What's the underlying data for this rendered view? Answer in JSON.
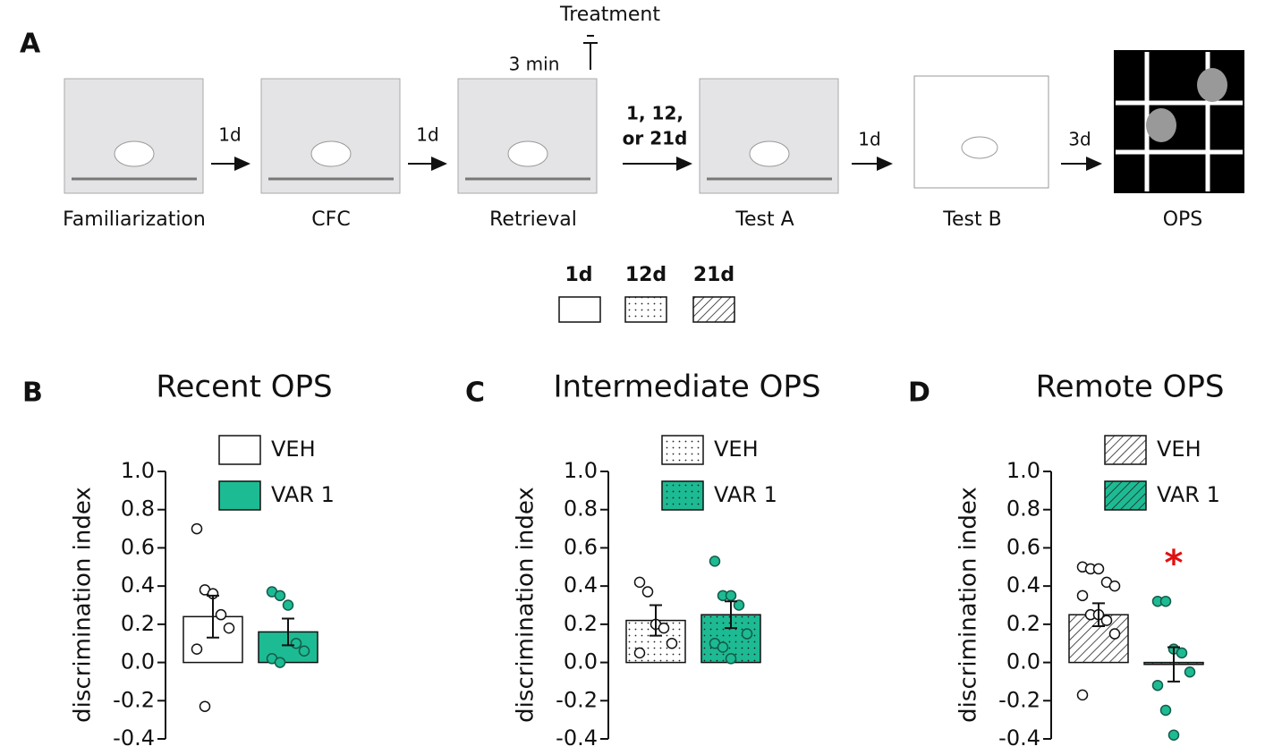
{
  "panel_a": {
    "letter": "A",
    "treatment": "Treatment",
    "duration": "3 min",
    "stages": [
      "Familiarization",
      "CFC",
      "Retrieval",
      "Test A",
      "Test B",
      "OPS"
    ],
    "intervals": [
      "1d",
      "1d",
      "1, 12,",
      "or 21d",
      "1d",
      "3d"
    ],
    "legend": [
      "1d",
      "12d",
      "21d"
    ]
  },
  "chart_data": [
    {
      "type": "bar",
      "panel": "B",
      "title": "Recent OPS",
      "y_label": "discrimination index",
      "pattern": "none",
      "ylim": [
        -0.4,
        1.0
      ],
      "yticks": [
        -0.4,
        -0.2,
        {
          "value": 0,
          "label": "0.0"
        },
        0.2,
        0.4,
        0.6,
        0.8,
        {
          "value": 1,
          "label": "1.0"
        }
      ],
      "series": [
        {
          "name": "VEH",
          "color": "#ffffff",
          "values": [
            0.24
          ],
          "errors": [
            0.11
          ],
          "points": [
            0.7,
            0.38,
            0.36,
            0.25,
            0.18,
            0.07,
            -0.23
          ]
        },
        {
          "name": "VAR 1",
          "color": "#1dbb93",
          "values": [
            0.16
          ],
          "errors": [
            0.07
          ],
          "points": [
            0.37,
            0.35,
            0.3,
            0.1,
            0.06,
            0.02,
            0.0
          ]
        }
      ]
    },
    {
      "type": "bar",
      "panel": "C",
      "title": "Intermediate OPS",
      "y_label": "discrimination index",
      "pattern": "dots",
      "ylim": [
        -0.4,
        1.0
      ],
      "yticks": [
        -0.4,
        -0.2,
        {
          "value": 0,
          "label": "0.0"
        },
        0.2,
        0.4,
        0.6,
        0.8,
        {
          "value": 1,
          "label": "1.0"
        }
      ],
      "series": [
        {
          "name": "VEH",
          "color": "#ffffff",
          "values": [
            0.22
          ],
          "errors": [
            0.08
          ],
          "points": [
            0.42,
            0.37,
            0.2,
            0.18,
            0.1,
            0.05
          ]
        },
        {
          "name": "VAR 1",
          "color": "#1dbb93",
          "values": [
            0.25
          ],
          "errors": [
            0.07
          ],
          "points": [
            0.53,
            0.35,
            0.35,
            0.3,
            0.15,
            0.1,
            0.08,
            0.02
          ]
        }
      ]
    },
    {
      "type": "bar",
      "panel": "D",
      "title": "Remote OPS",
      "y_label": "discrimination index",
      "pattern": "hatch",
      "annotation": "*",
      "ylim": [
        -0.4,
        1.0
      ],
      "yticks": [
        -0.4,
        -0.2,
        {
          "value": 0,
          "label": "0.0"
        },
        0.2,
        0.4,
        0.6,
        0.8,
        {
          "value": 1,
          "label": "1.0"
        }
      ],
      "series": [
        {
          "name": "VEH",
          "color": "#ffffff",
          "values": [
            0.25
          ],
          "errors": [
            0.06
          ],
          "points": [
            0.5,
            0.49,
            0.49,
            0.42,
            0.4,
            0.35,
            0.25,
            0.25,
            0.22,
            0.15,
            -0.17
          ]
        },
        {
          "name": "VAR 1",
          "color": "#1dbb93",
          "values": [
            -0.01
          ],
          "errors": [
            0.09
          ],
          "points": [
            0.32,
            0.32,
            0.07,
            0.05,
            -0.05,
            -0.12,
            -0.25,
            -0.38
          ]
        }
      ]
    }
  ]
}
